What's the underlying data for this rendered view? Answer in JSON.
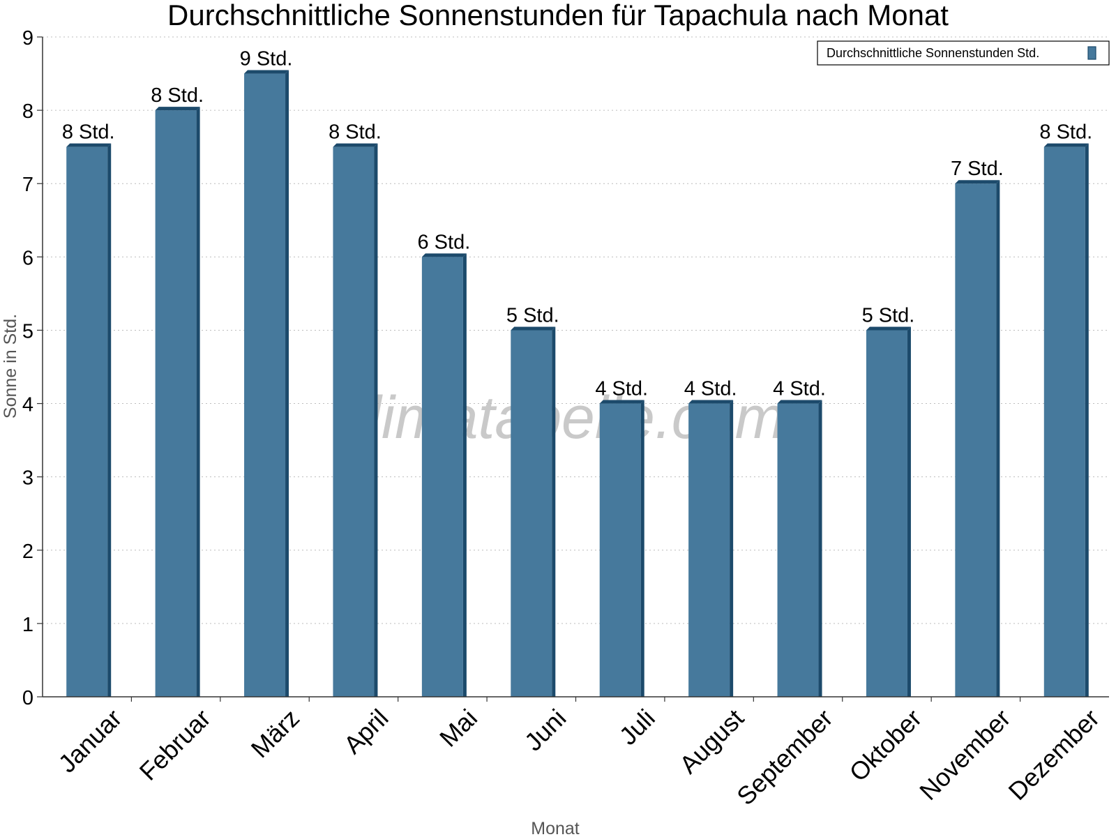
{
  "chart_data": {
    "type": "bar",
    "title": "Durchschnittliche Sonnenstunden für Tapachula nach Monat",
    "xlabel": "Monat",
    "ylabel": "Sonne in Std.",
    "ylim": [
      0,
      9
    ],
    "yticks": [
      "0",
      "1",
      "2",
      "3",
      "4",
      "5",
      "6",
      "7",
      "8",
      "9"
    ],
    "grid": true,
    "legend_position": "top-right",
    "categories": [
      "Januar",
      "Februar",
      "März",
      "April",
      "Mai",
      "Juni",
      "Juli",
      "August",
      "September",
      "Oktober",
      "November",
      "Dezember"
    ],
    "series": [
      {
        "name": "Durchschnittliche Sonnenstunden Std.",
        "values": [
          7.5,
          8,
          8.5,
          7.5,
          6,
          5,
          4,
          4,
          4,
          5,
          7,
          7.5
        ],
        "labels": [
          "8 Std.",
          "8 Std.",
          "9 Std.",
          "8 Std.",
          "6 Std.",
          "5 Std.",
          "4 Std.",
          "4 Std.",
          "4 Std.",
          "5 Std.",
          "7 Std.",
          "8 Std."
        ],
        "color": "#46799c",
        "edge_color": "#1c4a6b"
      }
    ],
    "watermark": "klimatabelle.com"
  }
}
